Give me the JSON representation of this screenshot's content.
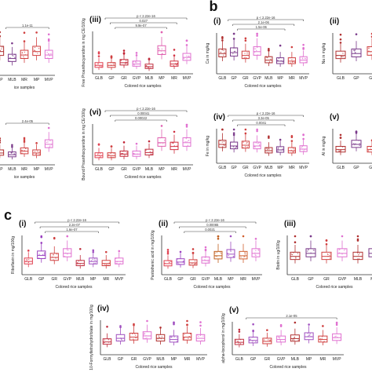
{
  "figure": {
    "panel_letters": [
      "b",
      "c"
    ],
    "background": "#ffffff"
  },
  "chart_data": [
    {
      "id": "a-i",
      "type": "box",
      "roman": "",
      "ylabel": "",
      "xlabel": "ice samples",
      "categories": [
        "MP",
        "MLB",
        "MR",
        "MP",
        "MVP"
      ],
      "colors": [
        "#b03030",
        "#7a3a8a",
        "#d04040",
        "#d04040",
        "#e070d0"
      ],
      "medians": [
        30,
        20,
        25,
        30,
        25
      ],
      "brackets": [
        {
          "text": "1.1e-11"
        }
      ]
    },
    {
      "id": "a-iii",
      "type": "box",
      "roman": "(iii)",
      "ylabel": "Free Proanthocyanidins in mg CE/100g",
      "xlabel": "Colored rice samples",
      "categories": [
        "GLB",
        "GP",
        "GR",
        "GVP",
        "MLB",
        "MP",
        "MR",
        "MVP"
      ],
      "colors": [
        "#e04050",
        "#d04040",
        "#c02030",
        "#e070d0",
        "#c03040",
        "#e060b0",
        "#d03040",
        "#e070d0"
      ],
      "medians": [
        8,
        8,
        12,
        10,
        6,
        30,
        10,
        20
      ],
      "brackets": [
        {
          "text": "p < 2.22e-16"
        },
        {
          "text": "0.027"
        },
        {
          "text": "9.9e-07"
        }
      ]
    },
    {
      "id": "a-bottom",
      "type": "box",
      "roman": "",
      "ylabel": "",
      "xlabel": "ice samples",
      "categories": [
        "MP",
        "MLB",
        "MR",
        "MP",
        "MVP"
      ],
      "colors": [
        "#b03030",
        "#7a3a8a",
        "#d04040",
        "#d04040",
        "#e070d0"
      ],
      "medians": [
        10,
        8,
        12,
        10,
        20
      ],
      "brackets": [
        {
          "text": "2.4e-05"
        }
      ]
    },
    {
      "id": "a-vi",
      "type": "box",
      "roman": "(vi)",
      "ylabel": "Bound Proanthocyanidins in mg CE/100g",
      "xlabel": "Colored rice samples",
      "categories": [
        "GLB",
        "GP",
        "GR",
        "GVP",
        "MLB",
        "MP",
        "MR",
        "MVP"
      ],
      "colors": [
        "#e04050",
        "#d04040",
        "#c02030",
        "#e070d0",
        "#c03040",
        "#e060b0",
        "#d03040",
        "#e070d0"
      ],
      "medians": [
        8,
        8,
        10,
        10,
        12,
        25,
        20,
        25
      ],
      "brackets": [
        {
          "text": "p < 2.22e-16"
        },
        {
          "text": "0.00041"
        },
        {
          "text": "0.00022"
        }
      ]
    },
    {
      "id": "b-i",
      "type": "box",
      "roman": "(i)",
      "ylabel": "Ca in mg/kg",
      "xlabel": "Colored rice samples",
      "categories": [
        "GLB",
        "GP",
        "GR",
        "GVP",
        "MLB",
        "MP",
        "MR",
        "MVP"
      ],
      "colors": [
        "#b03030",
        "#7a3a8a",
        "#d04040",
        "#e070d0",
        "#b03030",
        "#7a3a8a",
        "#d04040",
        "#e070d0"
      ],
      "medians": [
        180,
        190,
        160,
        200,
        110,
        100,
        100,
        110
      ],
      "brackets": [
        {
          "text": "p < 2.22e-16"
        },
        {
          "text": "2.1e-06"
        },
        {
          "text": "1.5e-06"
        }
      ]
    },
    {
      "id": "b-ii",
      "type": "box",
      "roman": "(ii)",
      "ylabel": "Na in mg/kg",
      "xlabel": "",
      "categories": [
        "GLB",
        "GP",
        "GR"
      ],
      "colors": [
        "#b03030",
        "#7a3a8a",
        "#d04040"
      ],
      "medians": [
        40,
        45,
        50
      ],
      "brackets": []
    },
    {
      "id": "b-iv",
      "type": "box",
      "roman": "(iv)",
      "ylabel": "Fe in mg/kg",
      "xlabel": "Colored rice samples",
      "categories": [
        "GLB",
        "GP",
        "GR",
        "GVP",
        "MLB",
        "MP",
        "MR",
        "MVP"
      ],
      "colors": [
        "#b03030",
        "#7a3a8a",
        "#d04040",
        "#e070d0",
        "#b03030",
        "#7a3a8a",
        "#d04040",
        "#e070d0"
      ],
      "medians": [
        20,
        18,
        19,
        18,
        12,
        13,
        12,
        14
      ],
      "brackets": [
        {
          "text": "p < 2.22e-16"
        },
        {
          "text": "3.3e-05"
        },
        {
          "text": "0.0041"
        }
      ]
    },
    {
      "id": "b-v",
      "type": "box",
      "roman": "(v)",
      "ylabel": "Al in mg/kg",
      "xlabel": "",
      "categories": [
        "GLB",
        "GP",
        "GR"
      ],
      "colors": [
        "#b03030",
        "#7a3a8a",
        "#d04040"
      ],
      "medians": [
        2,
        3,
        2
      ],
      "brackets": []
    },
    {
      "id": "c-i",
      "type": "box",
      "roman": "(i)",
      "ylabel": "Riboflavin in mg/100g",
      "xlabel": "Colored rice samples",
      "categories": [
        "GLB",
        "GP",
        "GR",
        "GVP",
        "MLB",
        "MP",
        "MR",
        "MVP"
      ],
      "colors": [
        "#e04050",
        "#9a40c0",
        "#d04040",
        "#e070d0",
        "#c03040",
        "#a050c0",
        "#d04040",
        "#e070d0"
      ],
      "medians": [
        0.5,
        0.8,
        0.7,
        0.9,
        0.4,
        0.5,
        0.4,
        0.5
      ],
      "brackets": [
        {
          "text": "p < 2.22e-16"
        },
        {
          "text": "2.2e-07"
        },
        {
          "text": "1.6e-07"
        }
      ]
    },
    {
      "id": "c-ii",
      "type": "box",
      "roman": "(ii)",
      "ylabel": "Pantothenic acid in mg/100g",
      "xlabel": "Colored rice samples",
      "categories": [
        "GLB",
        "GP",
        "GR",
        "GVP",
        "MLB",
        "MP",
        "MR",
        "MVP"
      ],
      "colors": [
        "#e04050",
        "#9a40c0",
        "#d04040",
        "#e070d0",
        "#c06020",
        "#a050c0",
        "#d06030",
        "#e070d0"
      ],
      "medians": [
        1.0,
        1.2,
        1.1,
        1.4,
        2.0,
        2.2,
        2.0,
        2.3
      ],
      "brackets": [
        {
          "text": "p < 2.22e-16"
        },
        {
          "text": "0.00065"
        },
        {
          "text": "0.0021"
        }
      ]
    },
    {
      "id": "c-iii",
      "type": "box",
      "roman": "(iii)",
      "ylabel": "Biotin in ug/100g",
      "xlabel": "Colored rice samples",
      "categories": [
        "GLB",
        "GP",
        "GR",
        "GVP",
        "MLB",
        "MP"
      ],
      "colors": [
        "#b03030",
        "#7a3a8a",
        "#d04040",
        "#e070d0",
        "#b03030",
        "#7a3a8a"
      ],
      "medians": [
        0.5,
        0.6,
        0.5,
        0.6,
        0.5,
        0.6
      ],
      "brackets": []
    },
    {
      "id": "c-iv",
      "type": "box",
      "roman": "(iv)",
      "ylabel": "10-Formyltetrahydrofolate in mg/100g",
      "xlabel": "Colored rice samples",
      "categories": [
        "GLB",
        "GP",
        "GR",
        "GVP",
        "MLB",
        "MP",
        "MR",
        "MVP"
      ],
      "colors": [
        "#c03040",
        "#a050c0",
        "#d04040",
        "#e070d0",
        "#b03030",
        "#a050c0",
        "#d04040",
        "#e070d0"
      ],
      "medians": [
        40,
        55,
        60,
        65,
        55,
        50,
        60,
        55
      ],
      "brackets": []
    },
    {
      "id": "c-v",
      "type": "box",
      "roman": "(v)",
      "ylabel": "alpha-tocopherol in mg/100g",
      "xlabel": "Colored rice samples",
      "categories": [
        "GLB",
        "GP",
        "GR",
        "GVP",
        "MLB",
        "MP",
        "MR",
        "MVP"
      ],
      "colors": [
        "#c03040",
        "#a050c0",
        "#d04040",
        "#e070d0",
        "#b03030",
        "#a050c0",
        "#d04040",
        "#e070d0"
      ],
      "medians": [
        1.0,
        1.2,
        1.1,
        1.3,
        1.4,
        1.6,
        1.3,
        1.5
      ],
      "brackets": [
        {
          "text": "2.1e-05"
        }
      ]
    }
  ]
}
